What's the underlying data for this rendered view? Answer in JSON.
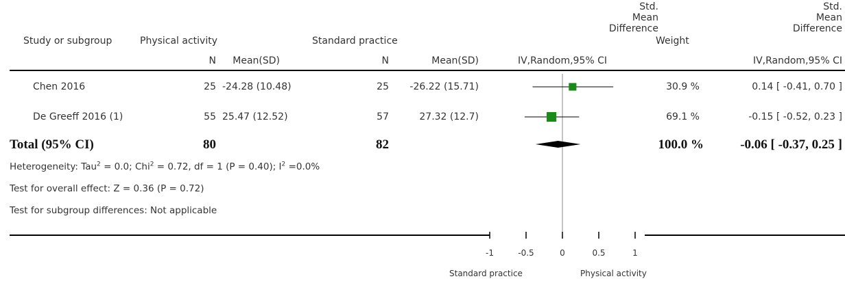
{
  "headers": {
    "study": "Study or subgroup",
    "group1": "Physical activity",
    "group2": "Standard practice",
    "smd_col": "Std.\nMean\nDifference",
    "weight": "Weight",
    "smd_col2": "Std.\nMean\nDifference",
    "n1": "N",
    "mean1": "Mean(SD)",
    "n2": "N",
    "mean2": "Mean(SD)",
    "method_plot": "IV,Random,95% CI",
    "method_num": "IV,Random,95% CI"
  },
  "studies": [
    {
      "name": "Chen 2016",
      "n1": "25",
      "mean1": "-24.28 (10.48)",
      "n2": "25",
      "mean2": "-26.22 (15.71)",
      "weight": "30.9 %",
      "ci_text": "0.14 [ -0.41, 0.70 ]"
    },
    {
      "name": "De Greeff 2016 (1)",
      "n1": "55",
      "mean1": "25.47 (12.52)",
      "n2": "57",
      "mean2": "27.32 (12.7)",
      "weight": "69.1 %",
      "ci_text": "-0.15 [ -0.52, 0.23 ]"
    }
  ],
  "total": {
    "label": "Total (95% CI)",
    "n1": "80",
    "n2": "82",
    "weight": "100.0 %",
    "ci_text": "-0.06 [ -0.37, 0.25 ]"
  },
  "footer": {
    "heterogeneity_prefix": "Heterogeneity: Tau",
    "heterogeneity_mid1": " = 0.0; Chi",
    "heterogeneity_mid2": " = 0.72, df = 1 (P = 0.40); I",
    "heterogeneity_end": " =0.0%",
    "sup": "2",
    "overall_effect": "Test for overall effect: Z = 0.36 (P = 0.72)",
    "subgroup_diff": "Test for subgroup differences: Not applicable"
  },
  "axis": {
    "favours_left": "Standard practice",
    "favours_right": "Physical activity"
  },
  "chart_data": {
    "type": "forest",
    "xlim": [
      -1,
      1
    ],
    "ticks": [
      -1,
      -0.5,
      0,
      0.5,
      1
    ],
    "tick_labels": [
      "-1",
      "-0.5",
      "0",
      "0.5",
      "1"
    ],
    "studies": [
      {
        "name": "Chen 2016",
        "estimate": 0.14,
        "ci_low": -0.41,
        "ci_high": 0.7,
        "weight": 30.9
      },
      {
        "name": "De Greeff 2016 (1)",
        "estimate": -0.15,
        "ci_low": -0.52,
        "ci_high": 0.23,
        "weight": 69.1
      }
    ],
    "pooled": {
      "estimate": -0.06,
      "ci_low": -0.37,
      "ci_high": 0.25
    },
    "colors": {
      "square": "#1a8a1a",
      "diamond": "#000000",
      "line": "#000000",
      "zero_line": "#888888"
    }
  }
}
